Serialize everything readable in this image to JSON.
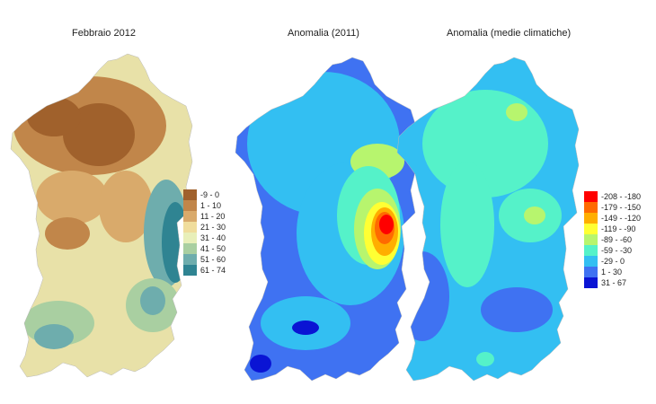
{
  "maps": [
    {
      "title": "Febbraio 2012",
      "variable": "precipitation"
    },
    {
      "title": "Anomalia (2011)",
      "variable": "anomaly"
    },
    {
      "title": "Anomalia (medie climatiche)",
      "variable": "anomaly"
    }
  ],
  "legend_precip": [
    {
      "label": "-9 - 0",
      "color": "#a0612c"
    },
    {
      "label": "1 - 10",
      "color": "#c1864a"
    },
    {
      "label": "11 - 20",
      "color": "#d9aa6b"
    },
    {
      "label": "21 - 30",
      "color": "#f0dd9c"
    },
    {
      "label": "31 - 40",
      "color": "#e8efb9"
    },
    {
      "label": "41 - 50",
      "color": "#a9cfa1"
    },
    {
      "label": "51 - 60",
      "color": "#6eadad"
    },
    {
      "label": "61 - 74",
      "color": "#2f8492"
    }
  ],
  "legend_anomaly": [
    {
      "label": "-208 - -180",
      "color": "#ff0000"
    },
    {
      "label": "-179 - -150",
      "color": "#ff6a00"
    },
    {
      "label": "-149 - -120",
      "color": "#ffae00"
    },
    {
      "label": "-119 - -90",
      "color": "#ffff33"
    },
    {
      "label": "-89 - -60",
      "color": "#b7f56e"
    },
    {
      "label": "-59 - -30",
      "color": "#55f2c9"
    },
    {
      "label": "-29 - 0",
      "color": "#33bff2"
    },
    {
      "label": "1 - 30",
      "color": "#3f72f2"
    },
    {
      "label": "31 - 67",
      "color": "#0a14d4"
    }
  ]
}
